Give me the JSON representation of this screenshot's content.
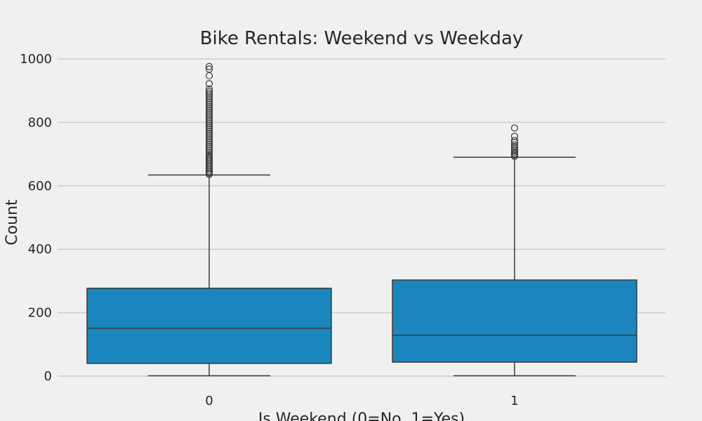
{
  "chart_data": {
    "type": "box",
    "title": "Bike Rentals: Weekend vs Weekday",
    "xlabel": "Is Weekend (0=No, 1=Yes)",
    "ylabel": "Count",
    "ylim": [
      -40,
      1050
    ],
    "y_ticks": [
      0,
      200,
      400,
      600,
      800,
      1000
    ],
    "grid": "horizontal",
    "colors": {
      "box": "#1a86bd",
      "line": "#3a3a3a",
      "background": "#f0f0f0",
      "grid": "#cbcbcb"
    },
    "categories": [
      "0",
      "1"
    ],
    "boxes": [
      {
        "category": "0",
        "whisker_low": 1,
        "q1": 40,
        "median": 151,
        "q3": 277,
        "whisker_high": 634,
        "outliers": [
          636,
          640,
          645,
          650,
          655,
          660,
          665,
          670,
          675,
          680,
          685,
          690,
          695,
          700,
          706,
          712,
          718,
          724,
          730,
          736,
          742,
          748,
          754,
          760,
          766,
          772,
          778,
          784,
          790,
          796,
          802,
          808,
          814,
          820,
          826,
          832,
          838,
          844,
          850,
          856,
          862,
          868,
          874,
          880,
          886,
          892,
          898,
          905,
          922,
          947,
          968,
          976
        ]
      },
      {
        "category": "1",
        "whisker_low": 1,
        "q1": 44,
        "median": 129,
        "q3": 303,
        "whisker_high": 690,
        "outliers": [
          693,
          697,
          701,
          706,
          711,
          716,
          722,
          729,
          737,
          743,
          756,
          782
        ]
      }
    ]
  }
}
